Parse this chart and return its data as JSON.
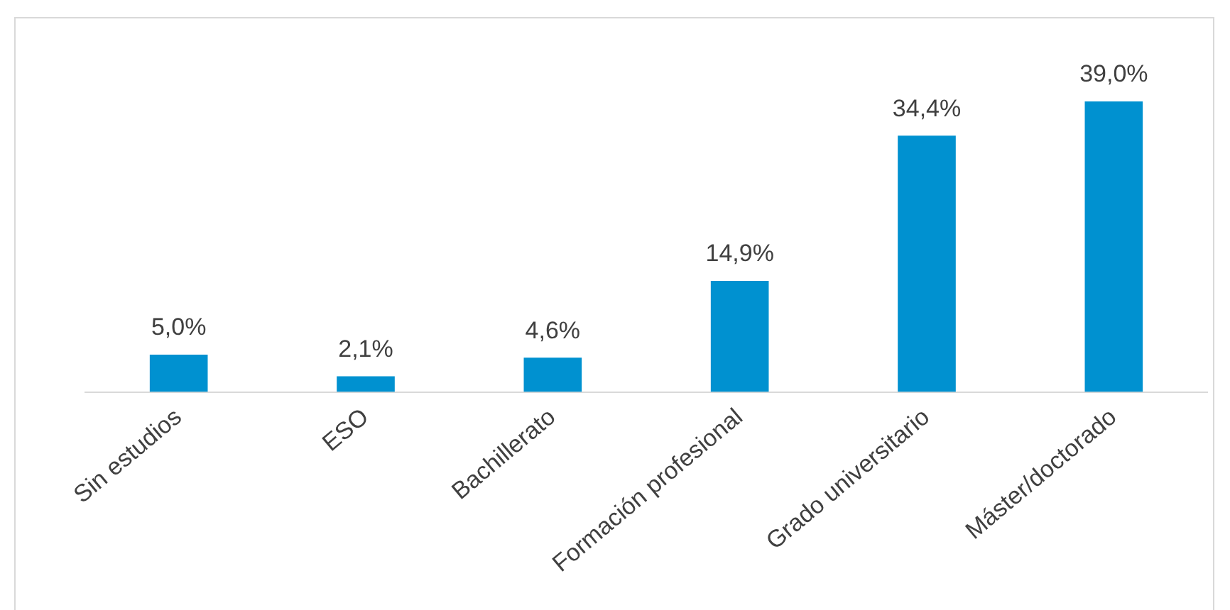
{
  "chart_data": {
    "type": "bar",
    "categories": [
      "Sin estudios",
      "ESO",
      "Bachillerato",
      "Formación profesional",
      "Grado universitario",
      "Máster/doctorado"
    ],
    "values": [
      5.0,
      2.1,
      4.6,
      14.9,
      34.4,
      39.0
    ],
    "color": "#0091d0",
    "value_labels": [
      "5,0%",
      "2,1%",
      "4,6%",
      "14,9%",
      "34,4%",
      "39,0%"
    ],
    "grid": false,
    "legend": false
  }
}
